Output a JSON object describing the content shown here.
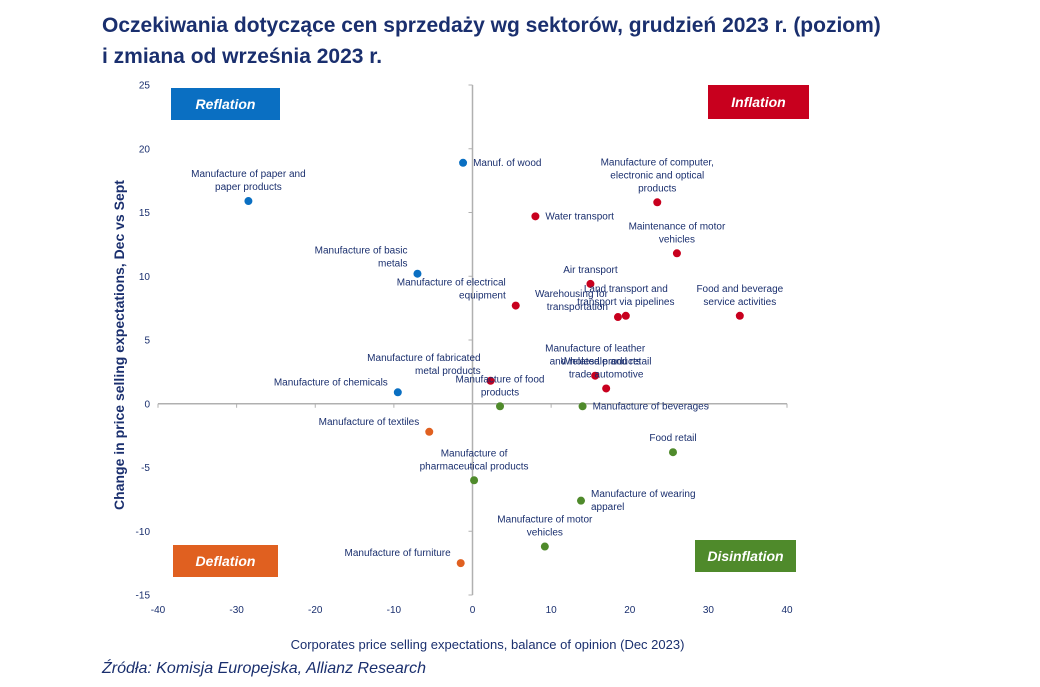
{
  "title_line1": "Oczekiwania dotyczące cen sprzedaży wg sektorów, grudzień 2023 r. (poziom)",
  "title_line2": "i zmiana od września 2023 r.",
  "source": "Źródła: Komisja Europejska, Allianz Research",
  "colors": {
    "reflation": "#0a6fc2",
    "inflation": "#c8001e",
    "deflation": "#e06020",
    "disinflation": "#4f8a2b",
    "axis": "#b0b0b0",
    "text": "#1a2f6e"
  },
  "chart_data": {
    "type": "scatter",
    "xlabel": "Corporates price selling expectations, balance of opinion (Dec 2023)",
    "ylabel": "Change in price selling expectations, Dec vs Sept",
    "xlim": [
      -40,
      40
    ],
    "ylim": [
      -15,
      25
    ],
    "xticks": [
      -40,
      -30,
      -20,
      -10,
      0,
      10,
      20,
      30,
      40
    ],
    "yticks": [
      25,
      20,
      15,
      10,
      5,
      0,
      -5,
      -10,
      -15
    ],
    "quadrants": [
      {
        "label": "Reflation",
        "color": "#0a6fc2",
        "position": "top-left"
      },
      {
        "label": "Inflation",
        "color": "#c8001e",
        "position": "top-right"
      },
      {
        "label": "Deflation",
        "color": "#e06020",
        "position": "bottom-left"
      },
      {
        "label": "Disinflation",
        "color": "#4f8a2b",
        "position": "bottom-right"
      }
    ],
    "points": [
      {
        "name": [
          "Manuf. of wood"
        ],
        "x": -1.2,
        "y": 18.9,
        "group": "reflation",
        "anchor": "start"
      },
      {
        "name": [
          "Manufacture of paper and",
          "paper products"
        ],
        "x": -28.5,
        "y": 15.9,
        "group": "reflation",
        "anchor": "middle"
      },
      {
        "name": [
          "Manufacture of basic",
          "metals"
        ],
        "x": -7.0,
        "y": 10.2,
        "group": "reflation",
        "anchor": "end"
      },
      {
        "name": [
          "Manufacture of chemicals"
        ],
        "x": -9.5,
        "y": 0.9,
        "group": "reflation",
        "anchor": "end"
      },
      {
        "name": [
          "Manufacture of computer,",
          "electronic and optical",
          "products"
        ],
        "x": 23.5,
        "y": 15.8,
        "group": "inflation",
        "anchor": "middle"
      },
      {
        "name": [
          "Water transport"
        ],
        "x": 8.0,
        "y": 14.7,
        "group": "inflation",
        "anchor": "start"
      },
      {
        "name": [
          "Maintenance of motor",
          "vehicles"
        ],
        "x": 26.0,
        "y": 11.8,
        "group": "inflation",
        "anchor": "middle"
      },
      {
        "name": [
          "Air transport"
        ],
        "x": 15.0,
        "y": 9.4,
        "group": "inflation",
        "anchor": "middle"
      },
      {
        "name": [
          "Manufacture of electrical",
          "equipment"
        ],
        "x": 5.5,
        "y": 7.7,
        "group": "inflation",
        "anchor": "end"
      },
      {
        "name": [
          "Land transport and",
          "transport via pipelines"
        ],
        "x": 19.5,
        "y": 6.9,
        "group": "inflation",
        "anchor": "middle"
      },
      {
        "name": [
          "Warehousing for",
          "transportation"
        ],
        "x": 18.5,
        "y": 6.8,
        "group": "inflation",
        "anchor": "end"
      },
      {
        "name": [
          "Food and beverage",
          "service activities"
        ],
        "x": 34.0,
        "y": 6.9,
        "group": "inflation",
        "anchor": "middle"
      },
      {
        "name": [
          "Manufacture of leather",
          "and related products"
        ],
        "x": 15.6,
        "y": 2.2,
        "group": "inflation",
        "anchor": "middle"
      },
      {
        "name": [
          "Wholesale and retail",
          "trade automotive"
        ],
        "x": 17.0,
        "y": 1.2,
        "group": "inflation",
        "anchor": "middle"
      },
      {
        "name": [
          "Manufacture of fabricated",
          "metal products"
        ],
        "x": 2.3,
        "y": 1.8,
        "group": "inflation",
        "anchor": "end"
      },
      {
        "name": [
          "Manufacture of food",
          "products"
        ],
        "x": 3.5,
        "y": -0.2,
        "group": "disinflation",
        "anchor": "middle"
      },
      {
        "name": [
          "Manufacture of beverages"
        ],
        "x": 14.0,
        "y": -0.2,
        "group": "disinflation",
        "anchor": "start"
      },
      {
        "name": [
          "Food retail"
        ],
        "x": 25.5,
        "y": -3.8,
        "group": "disinflation",
        "anchor": "middle"
      },
      {
        "name": [
          "Manufacture of",
          "pharmaceutical products"
        ],
        "x": 0.2,
        "y": -6.0,
        "group": "disinflation",
        "anchor": "middle"
      },
      {
        "name": [
          "Manufacture of wearing",
          "apparel"
        ],
        "x": 13.8,
        "y": -7.6,
        "group": "disinflation",
        "anchor": "start"
      },
      {
        "name": [
          "Manufacture of motor",
          "vehicles"
        ],
        "x": 9.2,
        "y": -11.2,
        "group": "disinflation",
        "anchor": "middle"
      },
      {
        "name": [
          "Manufacture of textiles"
        ],
        "x": -5.5,
        "y": -2.2,
        "group": "deflation",
        "anchor": "end"
      },
      {
        "name": [
          "Manufacture of furniture"
        ],
        "x": -1.5,
        "y": -12.5,
        "group": "deflation",
        "anchor": "end"
      }
    ]
  }
}
